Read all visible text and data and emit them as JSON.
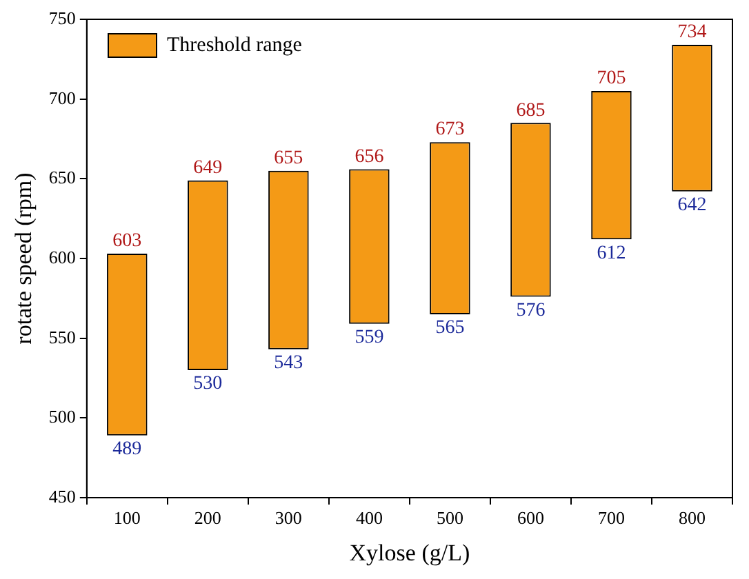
{
  "chart_data": {
    "type": "bar",
    "xlabel": "Xylose (g/L)",
    "ylabel": "rotate speed (rpm)",
    "categories": [
      "100",
      "200",
      "300",
      "400",
      "500",
      "600",
      "700",
      "800"
    ],
    "series": [
      {
        "name": "Threshold range",
        "color": "#f49a16",
        "values": [
          114,
          119,
          112,
          97,
          108,
          109,
          93,
          92
        ],
        "base": [
          489,
          530,
          543,
          559,
          565,
          576,
          612,
          642
        ]
      }
    ],
    "ylim": [
      450,
      750
    ],
    "yticks": [
      450,
      500,
      550,
      600,
      650,
      700,
      750
    ],
    "grid": false,
    "legend": "top left",
    "annotations": [
      {
        "text": "603",
        "x": "100",
        "y": 603
      },
      {
        "text": "489",
        "x": "100",
        "y": 489
      },
      {
        "text": "649",
        "x": "200",
        "y": 649
      },
      {
        "text": "530",
        "x": "200",
        "y": 530
      },
      {
        "text": "655",
        "x": "300",
        "y": 655
      },
      {
        "text": "543",
        "x": "300",
        "y": 543
      },
      {
        "text": "656",
        "x": "400",
        "y": 656
      },
      {
        "text": "559",
        "x": "400",
        "y": 559
      },
      {
        "text": "673",
        "x": "500",
        "y": 673
      },
      {
        "text": "565",
        "x": "500",
        "y": 565
      },
      {
        "text": "685",
        "x": "600",
        "y": 685
      },
      {
        "text": "576",
        "x": "600",
        "y": 576
      },
      {
        "text": "705",
        "x": "700",
        "y": 705
      },
      {
        "text": "612",
        "x": "700",
        "y": 612
      },
      {
        "text": "734",
        "x": "800",
        "y": 734
      },
      {
        "text": "642",
        "x": "800",
        "y": 642
      }
    ]
  }
}
